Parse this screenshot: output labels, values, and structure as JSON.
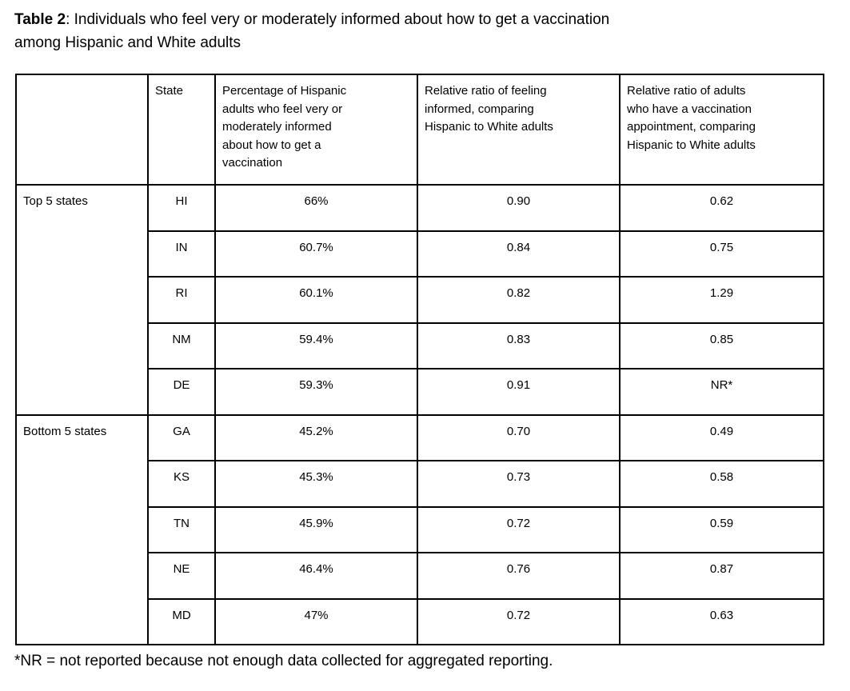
{
  "page": {
    "title_bold": "Table 2",
    "title_rest": ": Individuals who feel very or moderately informed about how to get a vaccination\namong Hispanic and White adults",
    "footnote": "*NR = not reported because not enough data collected for aggregated reporting."
  },
  "table": {
    "headers": {
      "group": "",
      "state": "State",
      "percentage": "Percentage of Hispanic\nadults who feel very or\nmoderately informed\nabout how to get a\nvaccination",
      "ratio_informed": "Relative ratio of feeling\ninformed, comparing\nHispanic to White adults",
      "ratio_appointment": "Relative ratio of adults\nwho have a vaccination\nappointment, comparing\nHispanic to White adults"
    },
    "groups": [
      {
        "label": "Top 5 states",
        "rows": [
          {
            "state": "HI",
            "pct": "66%",
            "ratio_informed": "0.90",
            "ratio_appt": "0.62"
          },
          {
            "state": "IN",
            "pct": "60.7%",
            "ratio_informed": "0.84",
            "ratio_appt": "0.75"
          },
          {
            "state": "RI",
            "pct": "60.1%",
            "ratio_informed": "0.82",
            "ratio_appt": "1.29"
          },
          {
            "state": "NM",
            "pct": "59.4%",
            "ratio_informed": "0.83",
            "ratio_appt": "0.85"
          },
          {
            "state": "DE",
            "pct": "59.3%",
            "ratio_informed": "0.91",
            "ratio_appt": "NR*"
          }
        ]
      },
      {
        "label": "Bottom 5 states",
        "rows": [
          {
            "state": "GA",
            "pct": "45.2%",
            "ratio_informed": "0.70",
            "ratio_appt": "0.49"
          },
          {
            "state": "KS",
            "pct": "45.3%",
            "ratio_informed": "0.73",
            "ratio_appt": "0.58"
          },
          {
            "state": "TN",
            "pct": "45.9%",
            "ratio_informed": "0.72",
            "ratio_appt": "0.59"
          },
          {
            "state": "NE",
            "pct": "46.4%",
            "ratio_informed": "0.76",
            "ratio_appt": "0.87"
          },
          {
            "state": "MD",
            "pct": "47%",
            "ratio_informed": "0.72",
            "ratio_appt": "0.63"
          }
        ]
      }
    ]
  }
}
